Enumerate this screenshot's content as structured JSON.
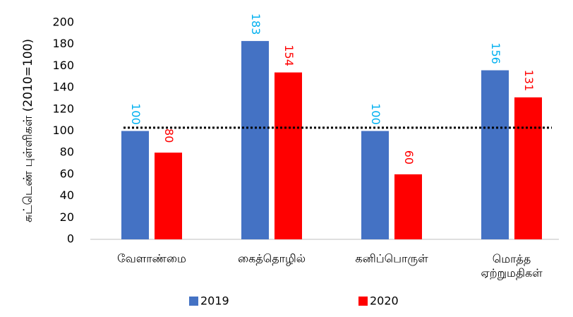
{
  "chart_data": {
    "type": "bar",
    "y_label": "சுட்டெண் புள்ளிகள்   (2010=100)",
    "categories": [
      "வேளாண்மை",
      "கைத்தொழில்",
      "கனிப்பொருள்",
      "மொத்த ஏற்றுமதிகள்"
    ],
    "series": [
      {
        "name": "2019",
        "color": "#4472c4",
        "label_color": "#00b0f0",
        "values": [
          100,
          183,
          100,
          156
        ]
      },
      {
        "name": "2020",
        "color": "#ff0000",
        "label_color": "#ff0000",
        "values": [
          80,
          154,
          60,
          131
        ]
      }
    ],
    "reference_line": 103,
    "ylim": [
      0,
      200
    ],
    "yticks": [
      0,
      20,
      40,
      60,
      80,
      100,
      120,
      140,
      160,
      180,
      200
    ],
    "grid": false,
    "legend": "bottom"
  }
}
